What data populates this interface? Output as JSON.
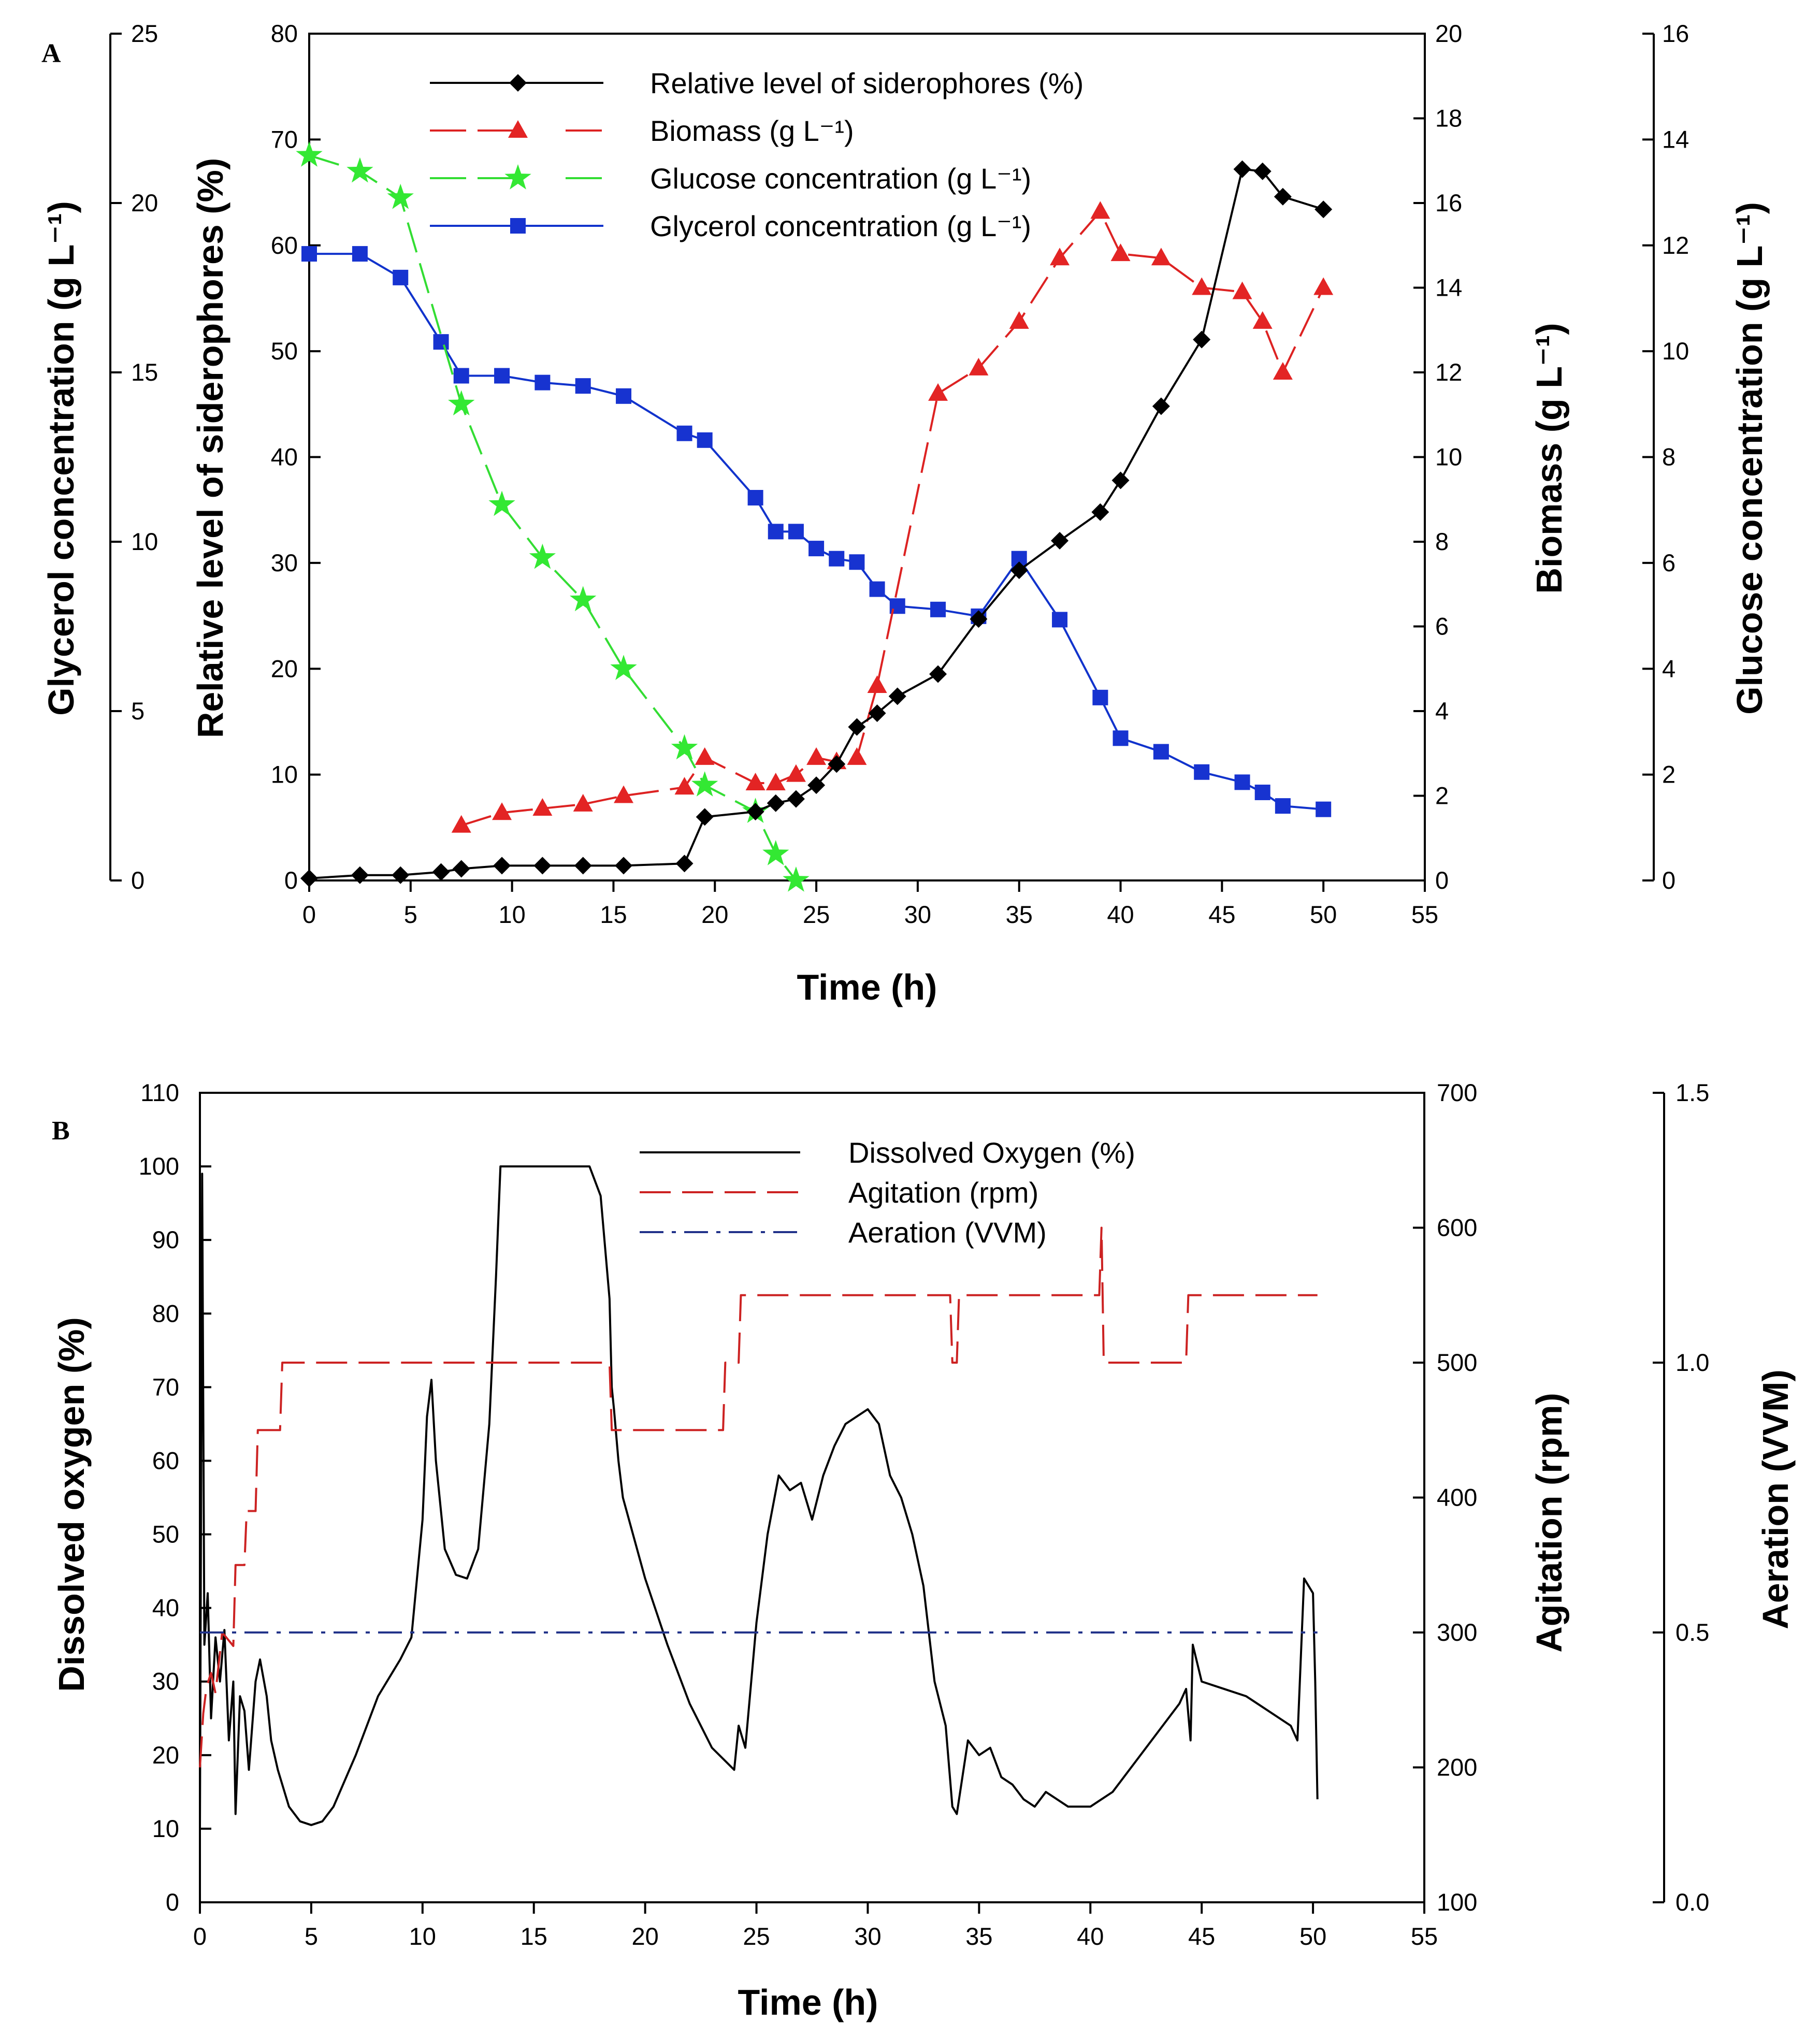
{
  "chart_data": [
    {
      "panel": "A",
      "type": "line",
      "xlabel": "Time (h)",
      "xlim": [
        0,
        55
      ],
      "xticks": [
        0,
        5,
        10,
        15,
        20,
        25,
        30,
        35,
        40,
        45,
        50,
        55
      ],
      "axes": {
        "glycerol": {
          "label": "Glycerol concentration (g L⁻¹)",
          "lim": [
            0,
            25
          ],
          "ticks": [
            0,
            5,
            10,
            15,
            20,
            25
          ]
        },
        "siderophores": {
          "label": "Relative level of siderophores (%)",
          "lim": [
            0,
            80
          ],
          "ticks": [
            0,
            10,
            20,
            30,
            40,
            50,
            60,
            70,
            80
          ]
        },
        "biomass": {
          "label": "Biomass (g L⁻¹)",
          "lim": [
            0,
            20
          ],
          "ticks": [
            0,
            2,
            4,
            6,
            8,
            10,
            12,
            14,
            16,
            18,
            20
          ]
        },
        "glucose": {
          "label": "Glucose concentration (g L⁻¹)",
          "lim": [
            0,
            16
          ],
          "ticks": [
            0,
            2,
            4,
            6,
            8,
            10,
            12,
            14,
            16
          ]
        }
      },
      "series": [
        {
          "name": "Relative level of siderophores (%)",
          "axis": "siderophores",
          "color": "#000000",
          "marker": "diamond",
          "dash": "solid",
          "x": [
            0,
            2.5,
            4.5,
            6.5,
            7.5,
            9.5,
            11.5,
            13.5,
            15.5,
            18.5,
            19.5,
            22,
            23,
            24,
            25,
            26,
            27,
            28,
            29,
            31,
            33,
            35,
            37,
            39,
            40,
            42,
            44,
            46,
            47,
            48,
            50
          ],
          "values": [
            0.2,
            0.5,
            0.5,
            0.8,
            1.1,
            1.4,
            1.4,
            1.4,
            1.4,
            1.6,
            6.0,
            6.5,
            7.3,
            7.7,
            9.0,
            11.0,
            14.5,
            15.8,
            17.4,
            19.5,
            24.7,
            29.3,
            32.1,
            34.8,
            37.8,
            44.8,
            51.1,
            67.2,
            67.0,
            64.6,
            63.4
          ]
        },
        {
          "name": "Biomass (g L⁻¹)",
          "axis": "biomass",
          "color": "#dd2222",
          "marker": "triangle",
          "dash": "long-dash",
          "x": [
            7.5,
            9.5,
            11.5,
            13.5,
            15.5,
            18.5,
            19.5,
            22,
            23,
            24,
            25,
            26,
            27,
            28,
            31,
            33,
            35,
            37,
            39,
            40,
            42,
            44,
            46,
            47,
            48,
            50
          ],
          "values": [
            1.3,
            1.6,
            1.7,
            1.8,
            2.0,
            2.2,
            2.9,
            2.3,
            2.3,
            2.5,
            2.9,
            2.8,
            2.9,
            4.6,
            11.5,
            12.1,
            13.2,
            14.7,
            15.8,
            14.8,
            14.7,
            14.0,
            13.9,
            13.2,
            12.0,
            14.0
          ]
        },
        {
          "name": "Glucose concentration (g L⁻¹)",
          "axis": "glucose",
          "color": "#33dd33",
          "marker": "star",
          "dash": "long-dash",
          "x": [
            0,
            2.5,
            4.5,
            7.5,
            9.5,
            11.5,
            13.5,
            15.5,
            18.5,
            19.5,
            22,
            23,
            24
          ],
          "values": [
            13.7,
            13.4,
            12.9,
            9.0,
            7.1,
            6.1,
            5.3,
            4.0,
            2.5,
            1.8,
            1.3,
            0.5,
            0.0
          ]
        },
        {
          "name": "Glycerol concentration (g L⁻¹)",
          "axis": "glycerol",
          "color": "#1133cc",
          "marker": "square",
          "dash": "solid",
          "x": [
            0,
            2.5,
            4.5,
            6.5,
            7.5,
            9.5,
            11.5,
            13.5,
            15.5,
            18.5,
            19.5,
            22,
            23,
            24,
            25,
            26,
            27,
            28,
            29,
            31,
            33,
            35,
            37,
            39,
            40,
            42,
            44,
            46,
            47,
            48,
            50
          ],
          "values": [
            18.5,
            18.5,
            17.8,
            15.9,
            14.9,
            14.9,
            14.7,
            14.6,
            14.3,
            13.2,
            13.0,
            11.3,
            10.3,
            10.3,
            9.8,
            9.5,
            9.4,
            8.6,
            8.1,
            8.0,
            7.8,
            9.5,
            7.7,
            5.4,
            4.2,
            3.8,
            3.2,
            2.9,
            2.6,
            2.2,
            2.1
          ]
        }
      ],
      "legend": {
        "position": "top-center",
        "entries": [
          "Relative level of siderophores (%)",
          "Biomass (g L⁻¹)",
          "Glucose concentration (g L⁻¹)",
          "Glycerol concentration (g L⁻¹)"
        ]
      }
    },
    {
      "panel": "B",
      "type": "line",
      "xlabel": "Time (h)",
      "xlim": [
        0,
        55
      ],
      "xticks": [
        0,
        5,
        10,
        15,
        20,
        25,
        30,
        35,
        40,
        45,
        50,
        55
      ],
      "axes": {
        "do": {
          "label": "Dissolved oxygen (%)",
          "lim": [
            0,
            110
          ],
          "ticks": [
            0,
            10,
            20,
            30,
            40,
            50,
            60,
            70,
            80,
            90,
            100,
            110
          ]
        },
        "agitation": {
          "label": "Agitation (rpm)",
          "lim": [
            100,
            700
          ],
          "ticks": [
            100,
            200,
            300,
            400,
            500,
            600,
            700
          ]
        },
        "aeration": {
          "label": "Aeration (VVM)",
          "lim": [
            0.0,
            1.5
          ],
          "ticks": [
            "0.0",
            "0.5",
            "1.0",
            "1.5"
          ]
        }
      },
      "series": [
        {
          "name": "Dissolved Oxygen (%)",
          "axis": "do",
          "color": "#000000",
          "dash": "solid",
          "x": [
            0,
            0.1,
            0.2,
            0.35,
            0.5,
            0.7,
            0.9,
            1.1,
            1.3,
            1.5,
            1.6,
            1.8,
            2.0,
            2.2,
            2.5,
            2.7,
            3.0,
            3.2,
            3.5,
            4.0,
            4.5,
            5.0,
            5.5,
            6.0,
            7.0,
            8.0,
            9.0,
            9.5,
            10.0,
            10.2,
            10.4,
            10.6,
            11.0,
            11.5,
            12.0,
            12.5,
            13.0,
            13.3,
            13.5,
            14.0,
            15.0,
            16.0,
            17.0,
            17.5,
            18.0,
            18.4,
            18.5,
            18.6,
            18.8,
            19.0,
            20.0,
            21.0,
            22.0,
            23.0,
            24.0,
            24.2,
            24.5,
            25.0,
            25.5,
            26.0,
            26.5,
            27.0,
            27.5,
            28.0,
            28.5,
            29.0,
            29.5,
            30.0,
            30.5,
            31.0,
            31.5,
            32.0,
            32.5,
            33.0,
            33.5,
            33.8,
            34.0,
            34.5,
            35.0,
            35.5,
            36.0,
            36.5,
            37.0,
            37.5,
            38.0,
            39.0,
            40.0,
            40.5,
            41.0,
            42.0,
            43.0,
            44.0,
            44.3,
            44.5,
            44.6,
            45.0,
            46.0,
            47.0,
            48.0,
            49.0,
            49.3,
            49.6,
            50.0,
            50.1,
            50.2
          ],
          "values": [
            10,
            99,
            35,
            42,
            25,
            36,
            30,
            37,
            22,
            30,
            12,
            28,
            26,
            18,
            30,
            33,
            28,
            22,
            18,
            13,
            11,
            10.5,
            11,
            13,
            20,
            28,
            33,
            36,
            52,
            66,
            71,
            60,
            48,
            44.5,
            44,
            48,
            65,
            85,
            100,
            100,
            100,
            100,
            100,
            100,
            96,
            82,
            70,
            67,
            60,
            55,
            44,
            35,
            27,
            21,
            18,
            24,
            21,
            38,
            50,
            58,
            56,
            57,
            52,
            58,
            62,
            65,
            66,
            67,
            65,
            58,
            55,
            50,
            43,
            30,
            24,
            13,
            12,
            22,
            20,
            21,
            17,
            16,
            14,
            13,
            15,
            13,
            13,
            14,
            15,
            19,
            23,
            27,
            29,
            22,
            35,
            30,
            29,
            28,
            26,
            24,
            22,
            44,
            42,
            30,
            14
          ]
        },
        {
          "name": "Agitation (rpm)",
          "axis": "agitation",
          "color": "#cc2222",
          "dash": "long-dash",
          "x": [
            0,
            0.15,
            0.3,
            0.5,
            0.7,
            1.0,
            1.5,
            1.6,
            2.0,
            2.1,
            2.5,
            2.6,
            3.0,
            3.1,
            3.6,
            3.7,
            5.0,
            10.0,
            15.0,
            18.4,
            18.5,
            20.0,
            23.5,
            23.6,
            24.2,
            24.3,
            25.0,
            30.0,
            33.7,
            33.8,
            34.0,
            34.1,
            35.0,
            40.4,
            40.5,
            40.6,
            42.0,
            44.3,
            44.4,
            46.0,
            50.2
          ],
          "values": [
            200,
            240,
            260,
            270,
            255,
            300,
            290,
            350,
            350,
            390,
            390,
            450,
            450,
            450,
            450,
            500,
            500,
            500,
            500,
            500,
            450,
            450,
            450,
            500,
            500,
            550,
            550,
            550,
            550,
            500,
            500,
            550,
            550,
            550,
            600,
            500,
            500,
            500,
            550,
            550,
            550
          ]
        },
        {
          "name": "Aeration (VVM)",
          "axis": "aeration",
          "color": "#22338a",
          "dash": "dash-dot",
          "x": [
            0,
            50.2
          ],
          "values": [
            0.5,
            0.5
          ]
        }
      ],
      "legend": {
        "position": "top-center",
        "entries": [
          "Dissolved Oxygen (%)",
          "Agitation (rpm)",
          "Aeration (VVM)"
        ]
      }
    }
  ]
}
